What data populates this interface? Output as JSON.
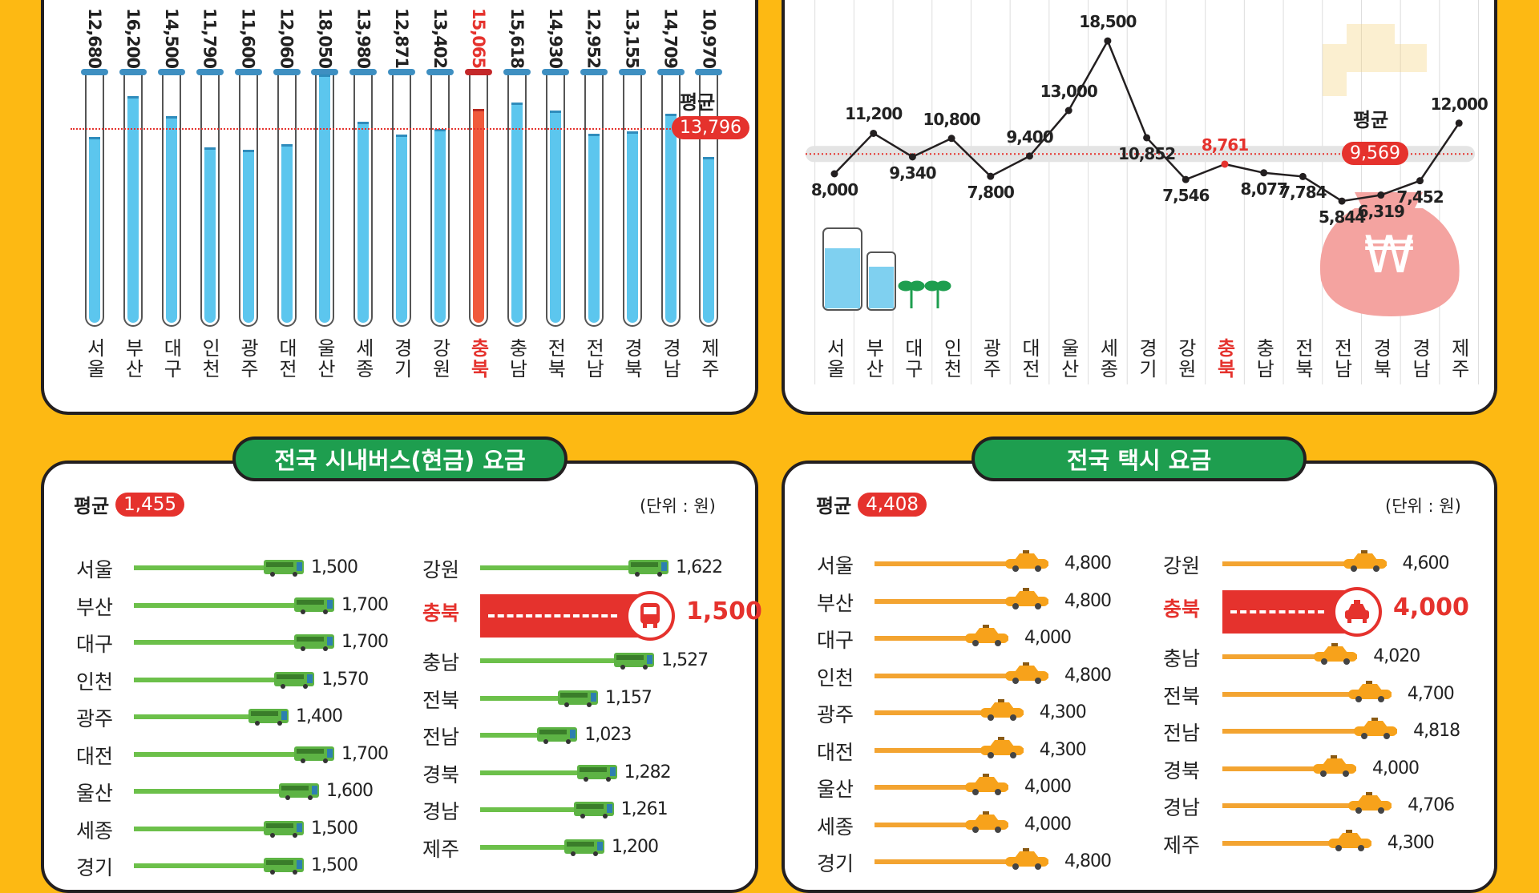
{
  "chart_data": [
    {
      "type": "bar",
      "title": "",
      "categories": [
        "서울",
        "부산",
        "대구",
        "인천",
        "광주",
        "대전",
        "울산",
        "세종",
        "경기",
        "강원",
        "충북",
        "충남",
        "전북",
        "전남",
        "경북",
        "경남",
        "제주"
      ],
      "values": [
        12680,
        16200,
        14500,
        11790,
        11600,
        12060,
        18050,
        13980,
        12871,
        13402,
        15065,
        15618,
        14930,
        12952,
        13155,
        14709,
        10970
      ],
      "value_labels": [
        "12,680",
        "16,200",
        "14,500",
        "11,790",
        "11,600",
        "12,060",
        "18,050",
        "13,980",
        "12,871",
        "13,402",
        "15,065",
        "15,618",
        "14,930",
        "12,952",
        "13,155",
        "14,709",
        "10,970"
      ],
      "highlight": "충북",
      "average": {
        "label": "평균",
        "value": 13796,
        "text": "13,796"
      }
    },
    {
      "type": "line",
      "title": "",
      "categories": [
        "서울",
        "부산",
        "대구",
        "인천",
        "광주",
        "대전",
        "울산",
        "세종",
        "경기",
        "강원",
        "충북",
        "충남",
        "전북",
        "전남",
        "경북",
        "경남",
        "제주"
      ],
      "values": [
        8000,
        11200,
        9340,
        10800,
        7800,
        9400,
        13000,
        18500,
        10852,
        7546,
        8761,
        8077,
        7784,
        5844,
        6319,
        7452,
        12000
      ],
      "value_labels": [
        "8,000",
        "11,200",
        "9,340",
        "10,800",
        "7,800",
        "9,400",
        "13,000",
        "18,500",
        "10,852",
        "7,546",
        "8,761",
        "8,077",
        "7,784",
        "5,844",
        "6,319",
        "7,452",
        "12,000"
      ],
      "highlight": "충북",
      "average": {
        "label": "평균",
        "value": 9569,
        "text": "9,569"
      }
    },
    {
      "type": "bar",
      "title": "전국 시내버스(현금) 요금",
      "average": {
        "label": "평균",
        "text": "1,455"
      },
      "unit": "(단위 : 원)",
      "left": [
        {
          "region": "서울",
          "value": 1500,
          "text": "1,500"
        },
        {
          "region": "부산",
          "value": 1700,
          "text": "1,700"
        },
        {
          "region": "대구",
          "value": 1700,
          "text": "1,700"
        },
        {
          "region": "인천",
          "value": 1570,
          "text": "1,570"
        },
        {
          "region": "광주",
          "value": 1400,
          "text": "1,400"
        },
        {
          "region": "대전",
          "value": 1700,
          "text": "1,700"
        },
        {
          "region": "울산",
          "value": 1600,
          "text": "1,600"
        },
        {
          "region": "세종",
          "value": 1500,
          "text": "1,500"
        },
        {
          "region": "경기",
          "value": 1500,
          "text": "1,500"
        }
      ],
      "right": [
        {
          "region": "강원",
          "value": 1622,
          "text": "1,622"
        },
        {
          "region": "충북",
          "value": 1500,
          "text": "1,500",
          "highlight": true
        },
        {
          "region": "충남",
          "value": 1527,
          "text": "1,527"
        },
        {
          "region": "전북",
          "value": 1157,
          "text": "1,157"
        },
        {
          "region": "전남",
          "value": 1023,
          "text": "1,023"
        },
        {
          "region": "경북",
          "value": 1282,
          "text": "1,282"
        },
        {
          "region": "경남",
          "value": 1261,
          "text": "1,261"
        },
        {
          "region": "제주",
          "value": 1200,
          "text": "1,200"
        }
      ]
    },
    {
      "type": "bar",
      "title": "전국 택시 요금",
      "average": {
        "label": "평균",
        "text": "4,408"
      },
      "unit": "(단위 : 원)",
      "left": [
        {
          "region": "서울",
          "value": 4800,
          "text": "4,800"
        },
        {
          "region": "부산",
          "value": 4800,
          "text": "4,800"
        },
        {
          "region": "대구",
          "value": 4000,
          "text": "4,000"
        },
        {
          "region": "인천",
          "value": 4800,
          "text": "4,800"
        },
        {
          "region": "광주",
          "value": 4300,
          "text": "4,300"
        },
        {
          "region": "대전",
          "value": 4300,
          "text": "4,300"
        },
        {
          "region": "울산",
          "value": 4000,
          "text": "4,000"
        },
        {
          "region": "세종",
          "value": 4000,
          "text": "4,000"
        },
        {
          "region": "경기",
          "value": 4800,
          "text": "4,800"
        }
      ],
      "right": [
        {
          "region": "강원",
          "value": 4600,
          "text": "4,600"
        },
        {
          "region": "충북",
          "value": 4000,
          "text": "4,000",
          "highlight": true
        },
        {
          "region": "충남",
          "value": 4020,
          "text": "4,020"
        },
        {
          "region": "전북",
          "value": 4700,
          "text": "4,700"
        },
        {
          "region": "전남",
          "value": 4818,
          "text": "4,818"
        },
        {
          "region": "경북",
          "value": 4000,
          "text": "4,000"
        },
        {
          "region": "경남",
          "value": 4706,
          "text": "4,706"
        },
        {
          "region": "제주",
          "value": 4300,
          "text": "4,300"
        }
      ]
    }
  ],
  "colors": {
    "background": "#FDB913",
    "highlight": "#E5322D",
    "tube": "#5CC6EE",
    "bus_line": "#6CC04A",
    "taxi_line": "#F3A431",
    "pill": "#1E9E4F"
  }
}
